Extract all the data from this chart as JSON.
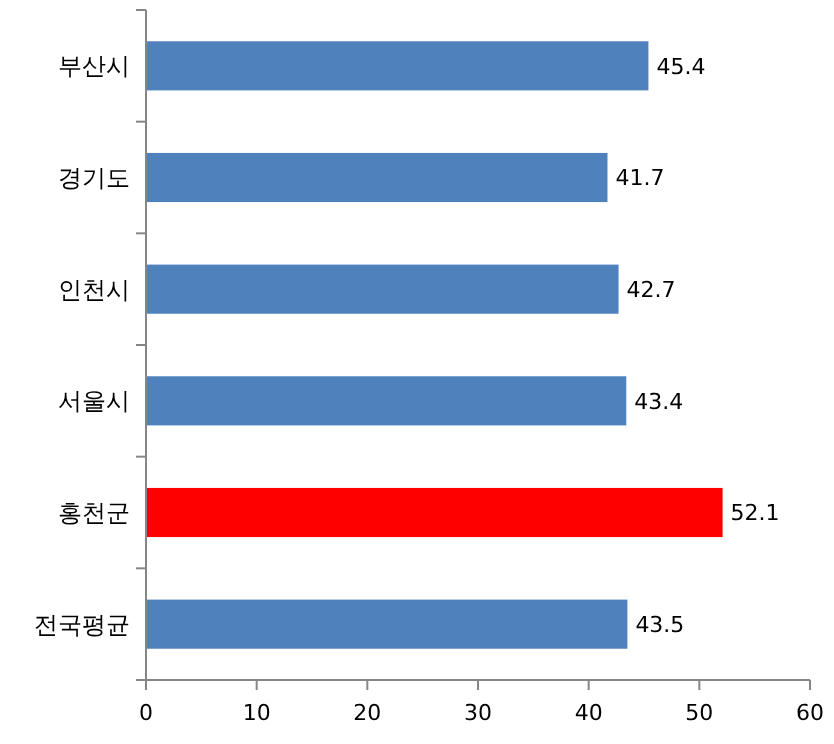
{
  "chart_data": {
    "type": "bar",
    "orientation": "horizontal",
    "categories": [
      "부산시",
      "경기도",
      "인천시",
      "서울시",
      "홍천군",
      "전국평균"
    ],
    "values": [
      45.4,
      41.7,
      42.7,
      43.4,
      52.1,
      43.5
    ],
    "colors": [
      "#4f81bd",
      "#4f81bd",
      "#4f81bd",
      "#4f81bd",
      "#ff0000",
      "#4f81bd"
    ],
    "xlim": [
      0,
      60
    ],
    "xticks": [
      0,
      10,
      20,
      30,
      40,
      50,
      60
    ],
    "data_labels": true,
    "grid": false
  }
}
